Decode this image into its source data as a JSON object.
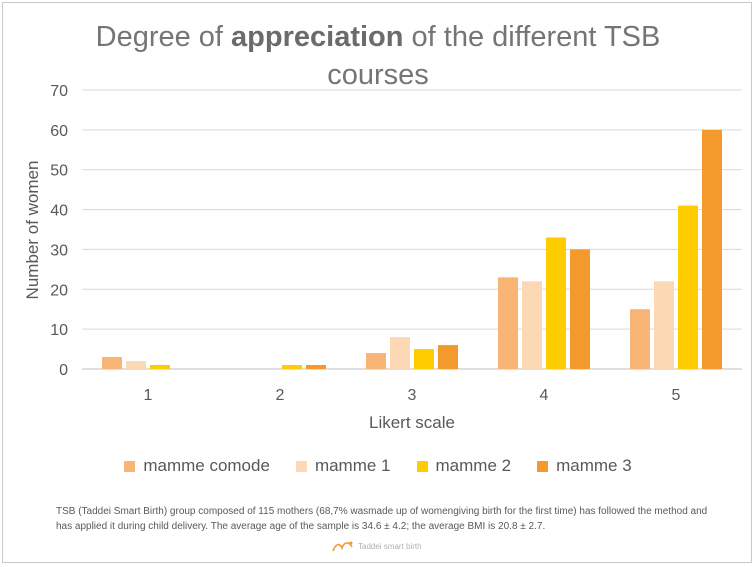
{
  "chart_data": {
    "type": "bar",
    "title_parts": [
      "Degree of ",
      "appreciation",
      " of the different TSB",
      "courses"
    ],
    "xlabel": "Likert scale",
    "ylabel": "Number of women",
    "categories": [
      "1",
      "2",
      "3",
      "4",
      "5"
    ],
    "ylim": [
      0,
      70
    ],
    "yticks": [
      "0",
      "10",
      "20",
      "30",
      "40",
      "50",
      "60",
      "70"
    ],
    "grid": true,
    "legend_position": "bottom",
    "series": [
      {
        "name": "mamme comode",
        "color": "#F9B575",
        "values": [
          3,
          0,
          4,
          23,
          15
        ]
      },
      {
        "name": "mamme 1",
        "color": "#FCD9B4",
        "values": [
          2,
          0,
          8,
          22,
          22
        ]
      },
      {
        "name": "mamme 2",
        "color": "#FFCC00",
        "values": [
          1,
          1,
          5,
          33,
          41
        ]
      },
      {
        "name": "mamme 3",
        "color": "#F49A2C",
        "values": [
          0,
          1,
          6,
          30,
          60
        ]
      }
    ]
  },
  "footnote": "TSB (Taddei Smart Birth) group composed of 115 mothers (68,7% wasmade up of womengiving birth for the first time) has followed the method and has applied it during child delivery. The average age of the sample is 34.6 ± 4.2; the average BMI is 20.8 ± 2.7.",
  "logo_text": "Taddei smart birth",
  "colors": {
    "grid": "#d9d9d9",
    "axis_text": "#595959",
    "title": "#757575"
  }
}
